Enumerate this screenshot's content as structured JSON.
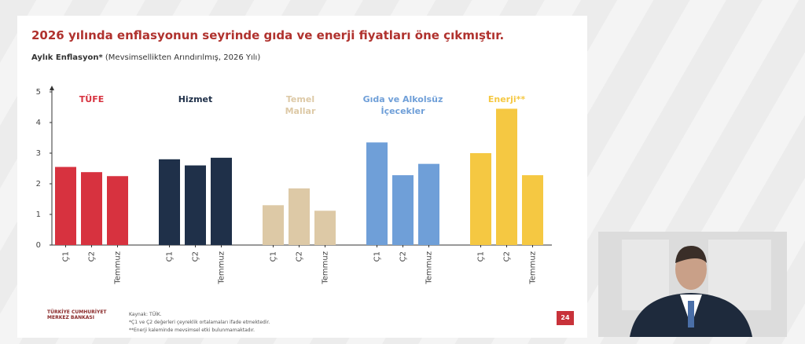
{
  "chart_data": {
    "type": "bar",
    "title": "2026 yılında enflasyonun seyrinde gıda ve enerji fiyatları öne çıkmıştır.",
    "subtitle_bold": "Aylık Enflasyon*",
    "subtitle": "(Mevsimsellikten Arındırılmış, 2026 Yılı)",
    "categories": [
      "Ç1",
      "Ç2",
      "Temmuz"
    ],
    "series": [
      {
        "name": "TÜFE",
        "color": "#d7323f",
        "values": [
          2.55,
          2.38,
          2.25
        ]
      },
      {
        "name": "Hizmet",
        "color": "#1f3049",
        "values": [
          2.8,
          2.6,
          2.85
        ]
      },
      {
        "name": "Temel Mallar",
        "color": "#ddc9a6",
        "values": [
          1.3,
          1.85,
          1.12
        ]
      },
      {
        "name": "Gıda ve Alkolsüz İçecekler",
        "color": "#6f9fd8",
        "values": [
          3.35,
          2.28,
          2.65
        ]
      },
      {
        "name": "Enerji**",
        "color": "#f5c842",
        "values": [
          3.0,
          4.45,
          2.28
        ]
      }
    ],
    "ylim": [
      0,
      5
    ],
    "yticks": [
      0,
      1,
      2,
      3,
      4,
      5
    ],
    "source": "Kaynak: TÜİK.",
    "notes": [
      "*Ç1 ve Ç2 değerleri çeyreklik ortalamaları ifade etmektedir.",
      "**Enerji kaleminde mevsimsel etki bulunmamaktadır."
    ]
  },
  "logo": "TÜRKİYE CUMHURİYET MERKEZ BANKASI",
  "page_number": "24"
}
